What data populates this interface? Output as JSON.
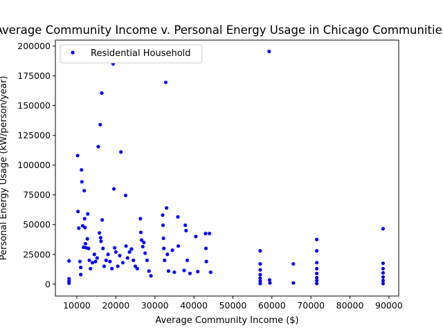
{
  "chart_data": {
    "type": "scatter",
    "title": "Average Community Income v. Personal Energy Usage in Chicago Communities",
    "xlabel": "Average Community Income ($)",
    "ylabel": "Personal Energy Usage (kW/person/year)",
    "xlim": [
      4500,
      92500
    ],
    "ylim": [
      -10000,
      205000
    ],
    "xticks": [
      10000,
      20000,
      30000,
      40000,
      50000,
      60000,
      70000,
      80000,
      90000
    ],
    "xtick_labels": [
      "10000",
      "20000",
      "30000",
      "40000",
      "50000",
      "60000",
      "70000",
      "80000",
      "90000"
    ],
    "yticks": [
      0,
      25000,
      50000,
      75000,
      100000,
      125000,
      150000,
      175000,
      200000
    ],
    "ytick_labels": [
      "0",
      "25000",
      "50000",
      "75000",
      "100000",
      "125000",
      "150000",
      "175000",
      "200000"
    ],
    "grid": false,
    "legend_position": "top-left",
    "series": [
      {
        "name": "Residential Household",
        "color": "#0000ff",
        "marker": "circle",
        "points": [
          [
            8000,
            19500
          ],
          [
            8000,
            4500
          ],
          [
            8000,
            2500
          ],
          [
            8000,
            800
          ],
          [
            10200,
            108000
          ],
          [
            10300,
            61000
          ],
          [
            10500,
            47000
          ],
          [
            10800,
            19000
          ],
          [
            11000,
            14000
          ],
          [
            11000,
            8000
          ],
          [
            11200,
            96000
          ],
          [
            11300,
            86000
          ],
          [
            11500,
            49000
          ],
          [
            11700,
            31000
          ],
          [
            11900,
            78500
          ],
          [
            12000,
            55000
          ],
          [
            12100,
            47500
          ],
          [
            12200,
            34000
          ],
          [
            12400,
            30500
          ],
          [
            12700,
            38000
          ],
          [
            12800,
            59000
          ],
          [
            13000,
            30000
          ],
          [
            13200,
            20000
          ],
          [
            13500,
            13000
          ],
          [
            14000,
            18000
          ],
          [
            14500,
            25000
          ],
          [
            14800,
            19000
          ],
          [
            15200,
            22000
          ],
          [
            15500,
            115500
          ],
          [
            15800,
            43000
          ],
          [
            16000,
            134000
          ],
          [
            16100,
            39000
          ],
          [
            16200,
            36000
          ],
          [
            16400,
            160500
          ],
          [
            16500,
            54000
          ],
          [
            16700,
            30000
          ],
          [
            17000,
            15000
          ],
          [
            17500,
            20000
          ],
          [
            18000,
            25000
          ],
          [
            18500,
            19000
          ],
          [
            19000,
            13000
          ],
          [
            19300,
            185000
          ],
          [
            19500,
            80000
          ],
          [
            19700,
            30500
          ],
          [
            20000,
            27000
          ],
          [
            20500,
            15000
          ],
          [
            21000,
            24000
          ],
          [
            21300,
            111000
          ],
          [
            21800,
            18000
          ],
          [
            22500,
            74500
          ],
          [
            22600,
            32000
          ],
          [
            23000,
            22000
          ],
          [
            23500,
            27000
          ],
          [
            24000,
            29500
          ],
          [
            24500,
            20000
          ],
          [
            25000,
            15000
          ],
          [
            25500,
            13000
          ],
          [
            26300,
            55000
          ],
          [
            26400,
            43500
          ],
          [
            26600,
            37000
          ],
          [
            26900,
            31500
          ],
          [
            27200,
            35000
          ],
          [
            27500,
            26000
          ],
          [
            28000,
            20000
          ],
          [
            28500,
            11000
          ],
          [
            29000,
            7000
          ],
          [
            32000,
            58000
          ],
          [
            32100,
            49500
          ],
          [
            32200,
            38500
          ],
          [
            32300,
            30000
          ],
          [
            32500,
            20000
          ],
          [
            32800,
            169500
          ],
          [
            33000,
            64000
          ],
          [
            33200,
            25000
          ],
          [
            33500,
            11000
          ],
          [
            34500,
            28500
          ],
          [
            35000,
            10000
          ],
          [
            35900,
            56500
          ],
          [
            36000,
            32000
          ],
          [
            37500,
            11500
          ],
          [
            37800,
            49500
          ],
          [
            38000,
            45000
          ],
          [
            38300,
            20000
          ],
          [
            39000,
            9000
          ],
          [
            40500,
            40000
          ],
          [
            41000,
            10500
          ],
          [
            43000,
            42500
          ],
          [
            43100,
            30000
          ],
          [
            43200,
            19000
          ],
          [
            44000,
            42500
          ],
          [
            44300,
            10000
          ],
          [
            57000,
            28000
          ],
          [
            57000,
            17000
          ],
          [
            57000,
            12000
          ],
          [
            57000,
            8000
          ],
          [
            57000,
            5000
          ],
          [
            57000,
            2500
          ],
          [
            57000,
            500
          ],
          [
            59300,
            195500
          ],
          [
            59400,
            3500
          ],
          [
            59500,
            1000
          ],
          [
            65500,
            17000
          ],
          [
            65500,
            1000
          ],
          [
            71500,
            37500
          ],
          [
            71500,
            28000
          ],
          [
            71500,
            18000
          ],
          [
            71500,
            13000
          ],
          [
            71500,
            9000
          ],
          [
            71500,
            5500
          ],
          [
            71500,
            3000
          ],
          [
            71500,
            500
          ],
          [
            88500,
            46500
          ],
          [
            88500,
            17500
          ],
          [
            88500,
            13000
          ],
          [
            88500,
            9500
          ],
          [
            88500,
            6000
          ],
          [
            88500,
            3000
          ],
          [
            88500,
            500
          ]
        ]
      }
    ]
  }
}
